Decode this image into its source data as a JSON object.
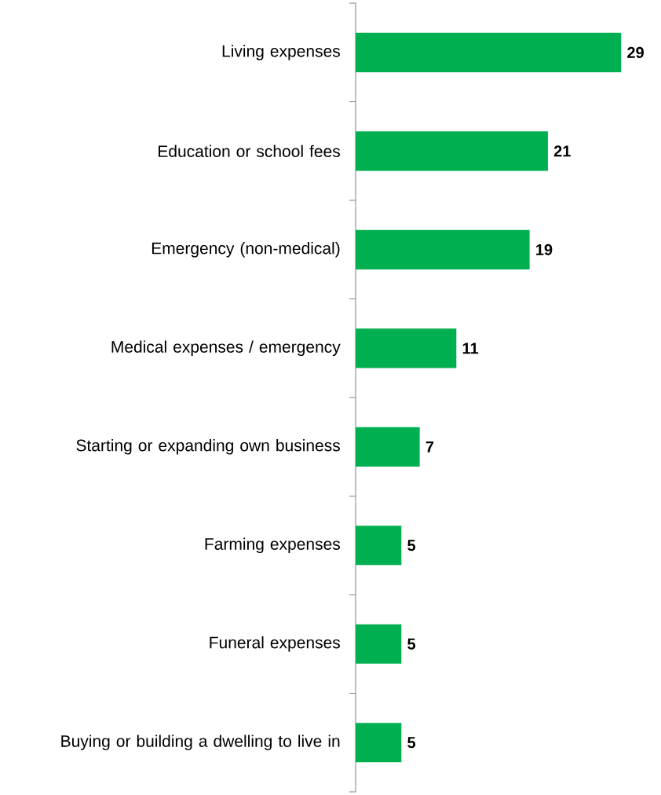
{
  "chart_data": {
    "type": "bar",
    "orientation": "horizontal",
    "categories": [
      "Living expenses",
      "Education or school fees",
      "Emergency (non-medical)",
      "Medical expenses / emergency",
      "Starting or expanding own business",
      "Farming expenses",
      "Funeral expenses",
      "Buying or building a dwelling to live in"
    ],
    "values": [
      29,
      21,
      19,
      11,
      7,
      5,
      5,
      5
    ],
    "color": "#00b050",
    "data_labels": true
  }
}
